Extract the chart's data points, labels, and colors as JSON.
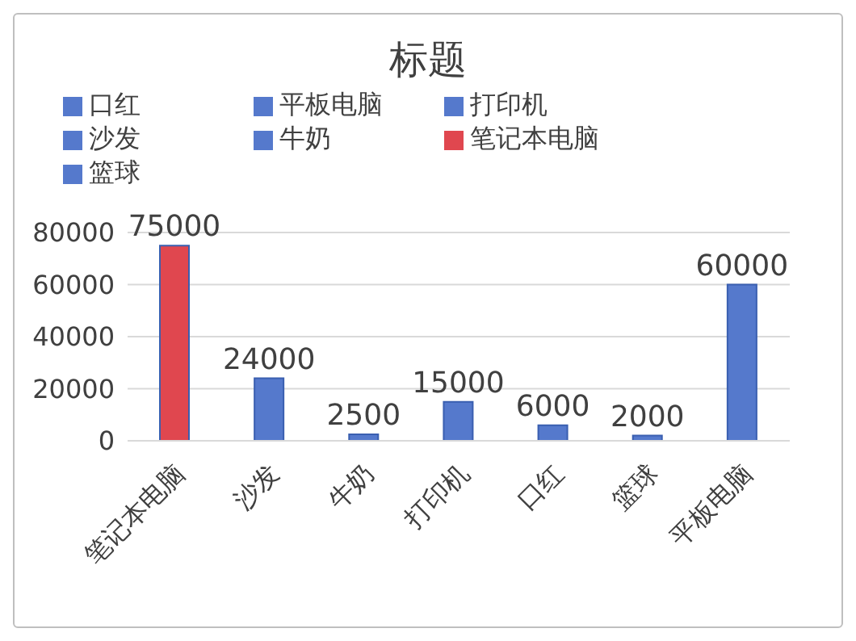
{
  "chart_data": {
    "type": "bar",
    "title": "标题",
    "categories": [
      "笔记本电脑",
      "沙发",
      "牛奶",
      "打印机",
      "口红",
      "篮球",
      "平板电脑"
    ],
    "series": [
      {
        "name": "笔记本电脑",
        "color": "#e0474f",
        "values": [
          75000,
          null,
          null,
          null,
          null,
          null,
          null
        ]
      },
      {
        "name": "沙发",
        "color": "#5579cc",
        "values": [
          null,
          24000,
          null,
          null,
          null,
          null,
          null
        ]
      },
      {
        "name": "牛奶",
        "color": "#5579cc",
        "values": [
          null,
          null,
          2500,
          null,
          null,
          null,
          null
        ]
      },
      {
        "name": "打印机",
        "color": "#5579cc",
        "values": [
          null,
          null,
          null,
          15000,
          null,
          null,
          null
        ]
      },
      {
        "name": "口红",
        "color": "#5579cc",
        "values": [
          null,
          null,
          null,
          null,
          6000,
          null,
          null
        ]
      },
      {
        "name": "篮球",
        "color": "#5579cc",
        "values": [
          null,
          null,
          null,
          null,
          null,
          2000,
          null
        ]
      },
      {
        "name": "平板电脑",
        "color": "#5579cc",
        "values": [
          null,
          null,
          null,
          null,
          null,
          null,
          60000
        ]
      }
    ],
    "ylim": [
      0,
      80000
    ],
    "yticks": [
      0,
      20000,
      40000,
      60000,
      80000
    ],
    "grid": "y",
    "legend": "top",
    "data_labels": true
  }
}
